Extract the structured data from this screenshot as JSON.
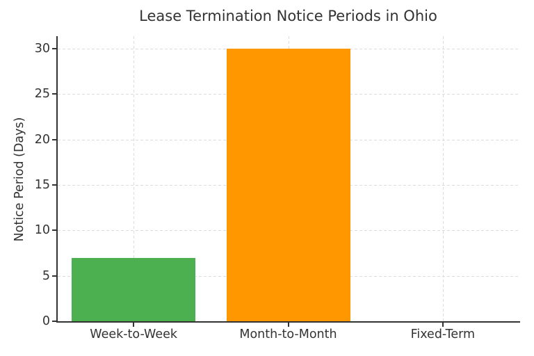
{
  "figure": {
    "background": "#ffffff",
    "text_color": "#333333",
    "axis_color": "#333333"
  },
  "chart_data": {
    "type": "bar",
    "title": "Lease Termination Notice Periods in Ohio",
    "xlabel": "",
    "ylabel": "Notice Period (Days)",
    "categories": [
      "Week-to-Week",
      "Month-to-Month",
      "Fixed-Term"
    ],
    "values": [
      7,
      30,
      0
    ],
    "bar_colors": [
      "#4caf50",
      "#ff9800",
      null
    ],
    "bar_width_ratio": 0.8,
    "yticks": [
      0,
      5,
      10,
      15,
      20,
      25,
      30
    ],
    "ylim": [
      0,
      31.4
    ],
    "grid": {
      "visible": true,
      "axis": "both",
      "style": "dashed",
      "color": "#dcdcdc"
    },
    "spines": {
      "left": true,
      "bottom": true,
      "top": false,
      "right": false
    },
    "legend": null
  }
}
